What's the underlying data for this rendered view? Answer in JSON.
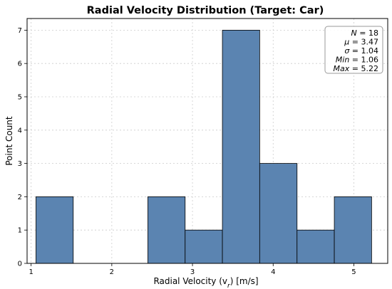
{
  "chart_data": {
    "type": "bar",
    "title": "Radial Velocity Distribution (Target: Car)",
    "xlabel": "Radial Velocity (v",
    "xlabel_sub": "r",
    "xlabel_suffix": ") [m/s]",
    "ylabel": "Point Count",
    "xlim": [
      0.95,
      5.42
    ],
    "ylim": [
      0,
      7.35
    ],
    "xticks": [
      1,
      2,
      3,
      4,
      5
    ],
    "yticks": [
      0,
      1,
      2,
      3,
      4,
      5,
      6,
      7
    ],
    "bin_edges": [
      1.06,
      1.522,
      1.984,
      2.447,
      2.909,
      3.371,
      3.833,
      4.296,
      4.758,
      5.22
    ],
    "values": [
      2,
      0,
      0,
      2,
      1,
      7,
      3,
      1,
      2
    ],
    "grid": true,
    "colors": {
      "bar_fill": "#5b84b1",
      "bar_edge": "#000000",
      "grid": "#cccccc"
    },
    "stats_box": {
      "placement": "top-right",
      "lines": [
        {
          "name": "N",
          "value": "= 18"
        },
        {
          "name": "μ",
          "value": "= 3.47"
        },
        {
          "name": "σ",
          "value": "= 1.04"
        },
        {
          "name": "Min",
          "value": "= 1.06"
        },
        {
          "name": "Max",
          "value": "= 5.22"
        }
      ]
    }
  }
}
